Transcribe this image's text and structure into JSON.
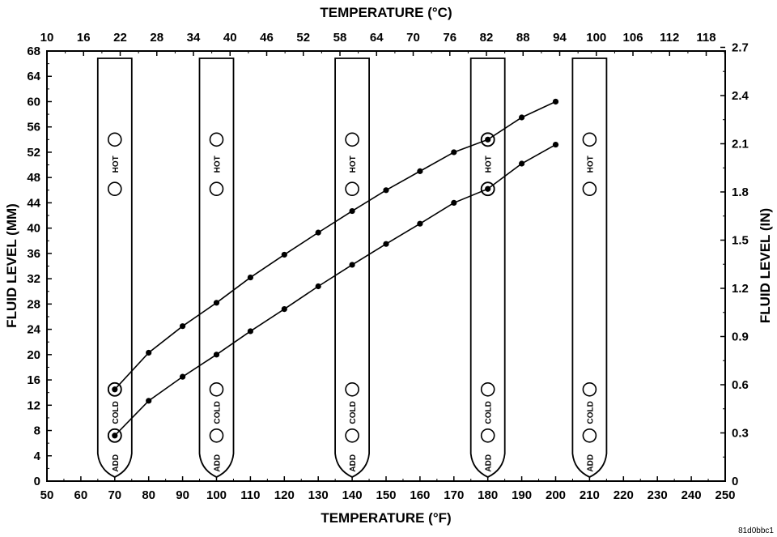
{
  "chart_data": {
    "type": "line",
    "title": "TEMPERATURE (°C)",
    "xlabel": "TEMPERATURE (°F)",
    "ylabel": "FLUID LEVEL (MM)",
    "ylabel_right": "FLUID LEVEL (IN)",
    "xlim": [
      50,
      250
    ],
    "ylim": [
      0,
      68
    ],
    "x_ticks": [
      "50",
      "60",
      "70",
      "80",
      "90",
      "100",
      "110",
      "120",
      "130",
      "140",
      "150",
      "160",
      "170",
      "180",
      "190",
      "200",
      "210",
      "220",
      "230",
      "240",
      "250"
    ],
    "y_ticks": [
      "0",
      "4",
      "8",
      "12",
      "16",
      "20",
      "24",
      "28",
      "32",
      "36",
      "40",
      "44",
      "48",
      "52",
      "56",
      "60",
      "64",
      "68"
    ],
    "top_ticks": [
      "10",
      "16",
      "22",
      "28",
      "34",
      "40",
      "46",
      "52",
      "58",
      "64",
      "70",
      "76",
      "82",
      "88",
      "94",
      "100",
      "106",
      "112",
      "118"
    ],
    "right_ticks": [
      "0",
      "0.3",
      "0.6",
      "0.9",
      "1.2",
      "1.5",
      "1.8",
      "2.1",
      "2.4",
      "2.7"
    ],
    "grid": false,
    "series": [
      {
        "x": [
          70,
          80,
          90,
          100,
          110,
          120,
          130,
          140,
          150,
          160,
          170,
          180,
          190,
          200
        ],
        "y": [
          14.5,
          20.3,
          24.5,
          28.2,
          32.2,
          35.8,
          39.3,
          42.7,
          46.0,
          49.0,
          52.0,
          54.0,
          57.5,
          60.0
        ]
      },
      {
        "x": [
          70,
          80,
          90,
          100,
          110,
          120,
          130,
          140,
          150,
          160,
          170,
          180,
          190,
          200
        ],
        "y": [
          7.2,
          12.7,
          16.5,
          20.0,
          23.7,
          27.2,
          30.8,
          34.2,
          37.5,
          40.7,
          44.0,
          46.2,
          50.2,
          53.2
        ]
      }
    ],
    "dipsticks": [
      {
        "x": 70,
        "hot_label": "HOT",
        "cold_label": "COLD",
        "add_label": "ADD"
      },
      {
        "x": 100,
        "hot_label": "HOT",
        "cold_label": "COLD",
        "add_label": "ADD"
      },
      {
        "x": 140,
        "hot_label": "HOT",
        "cold_label": "COLD",
        "add_label": "ADD"
      },
      {
        "x": 180,
        "hot_label": "HOT",
        "cold_label": "COLD",
        "add_label": "ADD"
      },
      {
        "x": 210,
        "hot_label": "HOT",
        "cold_label": "COLD",
        "add_label": "ADD"
      }
    ],
    "hole_levels": [
      7.2,
      14.5,
      46.2,
      54.0
    ],
    "highlighted_holes": [
      {
        "x": 70,
        "y": 14.5
      },
      {
        "x": 70,
        "y": 7.2
      },
      {
        "x": 180,
        "y": 54.0
      },
      {
        "x": 180,
        "y": 46.2
      }
    ]
  },
  "footer_code": "81d0bbc1"
}
